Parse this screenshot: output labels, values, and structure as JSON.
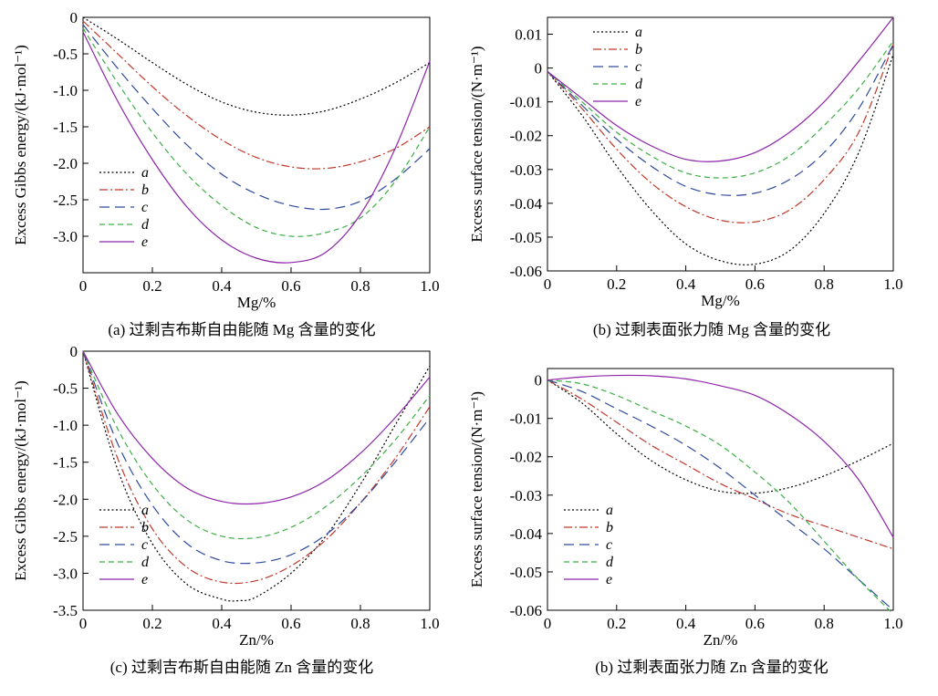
{
  "chart_data": [
    {
      "type": "line",
      "caption": "(a) 过剩吉布斯自由能随 Mg 含量的变化",
      "xlabel": "Mg/%",
      "ylabel": "Excess Gibbs energy/(kJ·mol⁻¹)",
      "xlim": [
        0,
        1.0
      ],
      "ylim": [
        -3.5,
        0
      ],
      "xticks": [
        "0",
        "0.2",
        "0.4",
        "0.6",
        "0.8",
        "1.0"
      ],
      "yticks": [
        "0",
        "-0.5",
        "-1.0",
        "-1.5",
        "-2.0",
        "-2.5",
        "-3.0"
      ],
      "legend_position": "bottom-left",
      "grid": false,
      "series": [
        {
          "name": "a",
          "color": "#000000",
          "style": "dotted",
          "x": [
            0,
            0.1,
            0.2,
            0.3,
            0.4,
            0.5,
            0.6,
            0.7,
            0.8,
            0.9,
            1.0
          ],
          "y": [
            0,
            -0.3,
            -0.62,
            -0.92,
            -1.16,
            -1.3,
            -1.34,
            -1.28,
            -1.12,
            -0.9,
            -0.62
          ]
        },
        {
          "name": "b",
          "color": "#c0392b",
          "style": "dashdot",
          "x": [
            0,
            0.1,
            0.2,
            0.3,
            0.4,
            0.5,
            0.6,
            0.7,
            0.8,
            0.9,
            1.0
          ],
          "y": [
            -0.05,
            -0.5,
            -0.95,
            -1.35,
            -1.68,
            -1.92,
            -2.05,
            -2.07,
            -1.98,
            -1.8,
            -1.5
          ]
        },
        {
          "name": "c",
          "color": "#2e4a9e",
          "style": "longdash",
          "x": [
            0,
            0.1,
            0.2,
            0.3,
            0.4,
            0.5,
            0.6,
            0.7,
            0.8,
            0.9,
            1.0
          ],
          "y": [
            -0.1,
            -0.7,
            -1.25,
            -1.75,
            -2.15,
            -2.42,
            -2.58,
            -2.63,
            -2.52,
            -2.22,
            -1.8
          ]
        },
        {
          "name": "d",
          "color": "#3cb043",
          "style": "dashed",
          "x": [
            0,
            0.1,
            0.2,
            0.3,
            0.4,
            0.5,
            0.6,
            0.7,
            0.8,
            0.9,
            1.0
          ],
          "y": [
            -0.15,
            -0.9,
            -1.58,
            -2.15,
            -2.58,
            -2.88,
            -3.0,
            -2.95,
            -2.75,
            -2.25,
            -1.5
          ]
        },
        {
          "name": "e",
          "color": "#8e24aa",
          "style": "solid",
          "x": [
            0,
            0.1,
            0.2,
            0.3,
            0.4,
            0.5,
            0.6,
            0.7,
            0.8,
            0.9,
            1.0
          ],
          "y": [
            -0.2,
            -1.15,
            -1.95,
            -2.6,
            -3.05,
            -3.3,
            -3.36,
            -3.22,
            -2.7,
            -1.8,
            -0.6
          ]
        }
      ]
    },
    {
      "type": "line",
      "caption": "(b) 过剩表面张力随 Mg 含量的变化",
      "xlabel": "Mg/%",
      "ylabel": "Excess surface tension/(N·m⁻¹)",
      "xlim": [
        0,
        1.0
      ],
      "ylim": [
        -0.06,
        0.015
      ],
      "xticks": [
        "0",
        "0.2",
        "0.4",
        "0.6",
        "0.8",
        "1.0"
      ],
      "yticks": [
        "0.01",
        "0",
        "-0.01",
        "-0.02",
        "-0.03",
        "-0.04",
        "-0.05",
        "-0.06"
      ],
      "legend_position": "top-left",
      "grid": false,
      "series": [
        {
          "name": "a",
          "color": "#000000",
          "style": "dotted",
          "x": [
            0,
            0.1,
            0.2,
            0.3,
            0.4,
            0.5,
            0.6,
            0.7,
            0.8,
            0.9,
            1.0
          ],
          "y": [
            -0.001,
            -0.014,
            -0.029,
            -0.042,
            -0.052,
            -0.057,
            -0.058,
            -0.054,
            -0.043,
            -0.025,
            0.004
          ]
        },
        {
          "name": "b",
          "color": "#c0392b",
          "style": "dashdot",
          "x": [
            0,
            0.1,
            0.2,
            0.3,
            0.4,
            0.5,
            0.6,
            0.7,
            0.8,
            0.9,
            1.0
          ],
          "y": [
            -0.001,
            -0.012,
            -0.024,
            -0.034,
            -0.041,
            -0.045,
            -0.0455,
            -0.042,
            -0.033,
            -0.019,
            0.007
          ]
        },
        {
          "name": "c",
          "color": "#2e4a9e",
          "style": "longdash",
          "x": [
            0,
            0.1,
            0.2,
            0.3,
            0.4,
            0.5,
            0.6,
            0.7,
            0.8,
            0.9,
            1.0
          ],
          "y": [
            -0.001,
            -0.011,
            -0.021,
            -0.029,
            -0.035,
            -0.0375,
            -0.037,
            -0.033,
            -0.025,
            -0.012,
            0.007
          ]
        },
        {
          "name": "d",
          "color": "#3cb043",
          "style": "dashed",
          "x": [
            0,
            0.1,
            0.2,
            0.3,
            0.4,
            0.5,
            0.6,
            0.7,
            0.8,
            0.9,
            1.0
          ],
          "y": [
            -0.001,
            -0.01,
            -0.019,
            -0.026,
            -0.031,
            -0.0325,
            -0.031,
            -0.026,
            -0.017,
            -0.006,
            0.008
          ]
        },
        {
          "name": "e",
          "color": "#8e24aa",
          "style": "solid",
          "x": [
            0,
            0.1,
            0.2,
            0.3,
            0.4,
            0.5,
            0.6,
            0.7,
            0.8,
            0.9,
            1.0
          ],
          "y": [
            -0.001,
            -0.009,
            -0.017,
            -0.023,
            -0.027,
            -0.0275,
            -0.025,
            -0.019,
            -0.01,
            0.002,
            0.015
          ]
        }
      ]
    },
    {
      "type": "line",
      "caption": "(c) 过剩吉布斯自由能随 Zn 含量的变化",
      "xlabel": "Zn/%",
      "ylabel": "Excess Gibbs energy/(kJ·mol⁻¹)",
      "xlim": [
        0,
        1.0
      ],
      "ylim": [
        -3.5,
        0
      ],
      "xticks": [
        "0",
        "0.2",
        "0.4",
        "0.6",
        "0.8",
        "1.0"
      ],
      "yticks": [
        "0",
        "-0.5",
        "-1.0",
        "-1.5",
        "-2.0",
        "-2.5",
        "-3.0",
        "-3.5"
      ],
      "legend_position": "bottom-left",
      "grid": false,
      "series": [
        {
          "name": "a",
          "color": "#000000",
          "style": "dotted",
          "x": [
            0,
            0.1,
            0.2,
            0.3,
            0.4,
            0.45,
            0.5,
            0.6,
            0.7,
            0.8,
            0.9,
            1.0
          ],
          "y": [
            0,
            -1.6,
            -2.6,
            -3.15,
            -3.35,
            -3.37,
            -3.32,
            -3.0,
            -2.5,
            -1.8,
            -1.0,
            -0.2
          ]
        },
        {
          "name": "b",
          "color": "#c0392b",
          "style": "dashdot",
          "x": [
            0,
            0.1,
            0.2,
            0.3,
            0.4,
            0.5,
            0.6,
            0.7,
            0.8,
            0.9,
            1.0
          ],
          "y": [
            0,
            -1.45,
            -2.4,
            -2.92,
            -3.12,
            -3.1,
            -2.9,
            -2.55,
            -2.05,
            -1.45,
            -0.75
          ]
        },
        {
          "name": "c",
          "color": "#2e4a9e",
          "style": "longdash",
          "x": [
            0,
            0.1,
            0.2,
            0.3,
            0.4,
            0.5,
            0.6,
            0.7,
            0.8,
            0.9,
            1.0
          ],
          "y": [
            0,
            -1.25,
            -2.08,
            -2.6,
            -2.83,
            -2.86,
            -2.75,
            -2.48,
            -2.05,
            -1.5,
            -0.9
          ]
        },
        {
          "name": "d",
          "color": "#3cb043",
          "style": "dashed",
          "x": [
            0,
            0.1,
            0.2,
            0.3,
            0.4,
            0.5,
            0.6,
            0.7,
            0.8,
            0.9,
            1.0
          ],
          "y": [
            0,
            -1.05,
            -1.8,
            -2.28,
            -2.5,
            -2.52,
            -2.38,
            -2.1,
            -1.7,
            -1.2,
            -0.6
          ]
        },
        {
          "name": "e",
          "color": "#8e24aa",
          "style": "solid",
          "x": [
            0,
            0.1,
            0.2,
            0.3,
            0.4,
            0.5,
            0.6,
            0.7,
            0.8,
            0.9,
            1.0
          ],
          "y": [
            0,
            -0.85,
            -1.45,
            -1.85,
            -2.03,
            -2.06,
            -1.97,
            -1.75,
            -1.38,
            -0.9,
            -0.35
          ]
        }
      ]
    },
    {
      "type": "line",
      "caption": "(b) 过剩表面张力随 Zn 含量的变化",
      "xlabel": "Zn/%",
      "ylabel": "Excess surface tension/(N·m⁻¹)",
      "xlim": [
        0,
        1.0
      ],
      "ylim": [
        -0.06,
        0.003
      ],
      "xticks": [
        "0",
        "0.2",
        "0.4",
        "0.6",
        "0.8",
        "1.0"
      ],
      "yticks": [
        "0",
        "-0.01",
        "-0.02",
        "-0.03",
        "-0.04",
        "-0.05",
        "-0.06"
      ],
      "legend_position": "bottom-left",
      "grid": false,
      "series": [
        {
          "name": "a",
          "color": "#000000",
          "style": "dotted",
          "x": [
            0,
            0.1,
            0.2,
            0.3,
            0.4,
            0.5,
            0.6,
            0.7,
            0.8,
            0.9,
            1.0
          ],
          "y": [
            0,
            -0.006,
            -0.014,
            -0.021,
            -0.026,
            -0.029,
            -0.0295,
            -0.028,
            -0.025,
            -0.021,
            -0.0165
          ]
        },
        {
          "name": "b",
          "color": "#c0392b",
          "style": "dashdot",
          "x": [
            0,
            0.1,
            0.2,
            0.3,
            0.4,
            0.5,
            0.6,
            0.7,
            0.8,
            0.9,
            1.0
          ],
          "y": [
            0,
            -0.005,
            -0.011,
            -0.017,
            -0.022,
            -0.027,
            -0.031,
            -0.035,
            -0.038,
            -0.041,
            -0.044
          ]
        },
        {
          "name": "c",
          "color": "#2e4a9e",
          "style": "longdash",
          "x": [
            0,
            0.1,
            0.2,
            0.3,
            0.4,
            0.5,
            0.6,
            0.7,
            0.8,
            0.9,
            1.0
          ],
          "y": [
            0,
            -0.003,
            -0.0075,
            -0.012,
            -0.017,
            -0.023,
            -0.03,
            -0.037,
            -0.044,
            -0.052,
            -0.06
          ]
        },
        {
          "name": "d",
          "color": "#3cb043",
          "style": "dashed",
          "x": [
            0,
            0.1,
            0.2,
            0.3,
            0.4,
            0.5,
            0.6,
            0.7,
            0.8,
            0.9,
            1.0
          ],
          "y": [
            0,
            -0.001,
            -0.004,
            -0.008,
            -0.012,
            -0.017,
            -0.024,
            -0.032,
            -0.042,
            -0.052,
            -0.061
          ]
        },
        {
          "name": "e",
          "color": "#8e24aa",
          "style": "solid",
          "x": [
            0,
            0.1,
            0.2,
            0.3,
            0.4,
            0.5,
            0.6,
            0.7,
            0.8,
            0.9,
            1.0
          ],
          "y": [
            0,
            0.0008,
            0.0012,
            0.0011,
            0.0003,
            -0.0015,
            -0.004,
            -0.009,
            -0.016,
            -0.026,
            -0.041
          ]
        }
      ]
    }
  ]
}
